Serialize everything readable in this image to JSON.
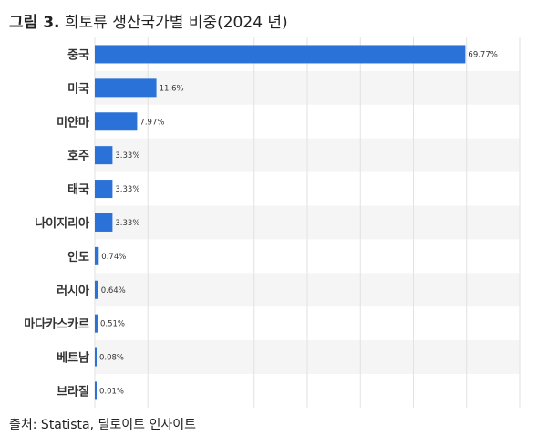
{
  "figure": {
    "title_prefix": "그림 3.",
    "title": "희토류 생산국가별 비중(2024 년)",
    "source": "출처: Statista, 딜로이트 인사이트"
  },
  "colors": {
    "bar": "#2a72d8",
    "stripe": "#f5f5f5",
    "grid": "#e2e2e2"
  },
  "chart_data": {
    "type": "bar",
    "orientation": "horizontal",
    "title": "희토류 생산국가별 비중(2024 년)",
    "categories": [
      "중국",
      "미국",
      "미얀마",
      "호주",
      "태국",
      "나이지리아",
      "인도",
      "러시아",
      "마다카스카르",
      "베트남",
      "브라질"
    ],
    "values": [
      69.77,
      11.6,
      7.97,
      3.33,
      3.33,
      3.33,
      0.74,
      0.64,
      0.51,
      0.08,
      0.01
    ],
    "value_labels": [
      "69.77%",
      "11.6%",
      "7.97%",
      "3.33%",
      "3.33%",
      "3.33%",
      "0.74%",
      "0.64%",
      "0.51%",
      "0.08%",
      "0.01%"
    ],
    "xlim": [
      0,
      80
    ],
    "unit": "%",
    "grid": true,
    "legend": "none"
  }
}
